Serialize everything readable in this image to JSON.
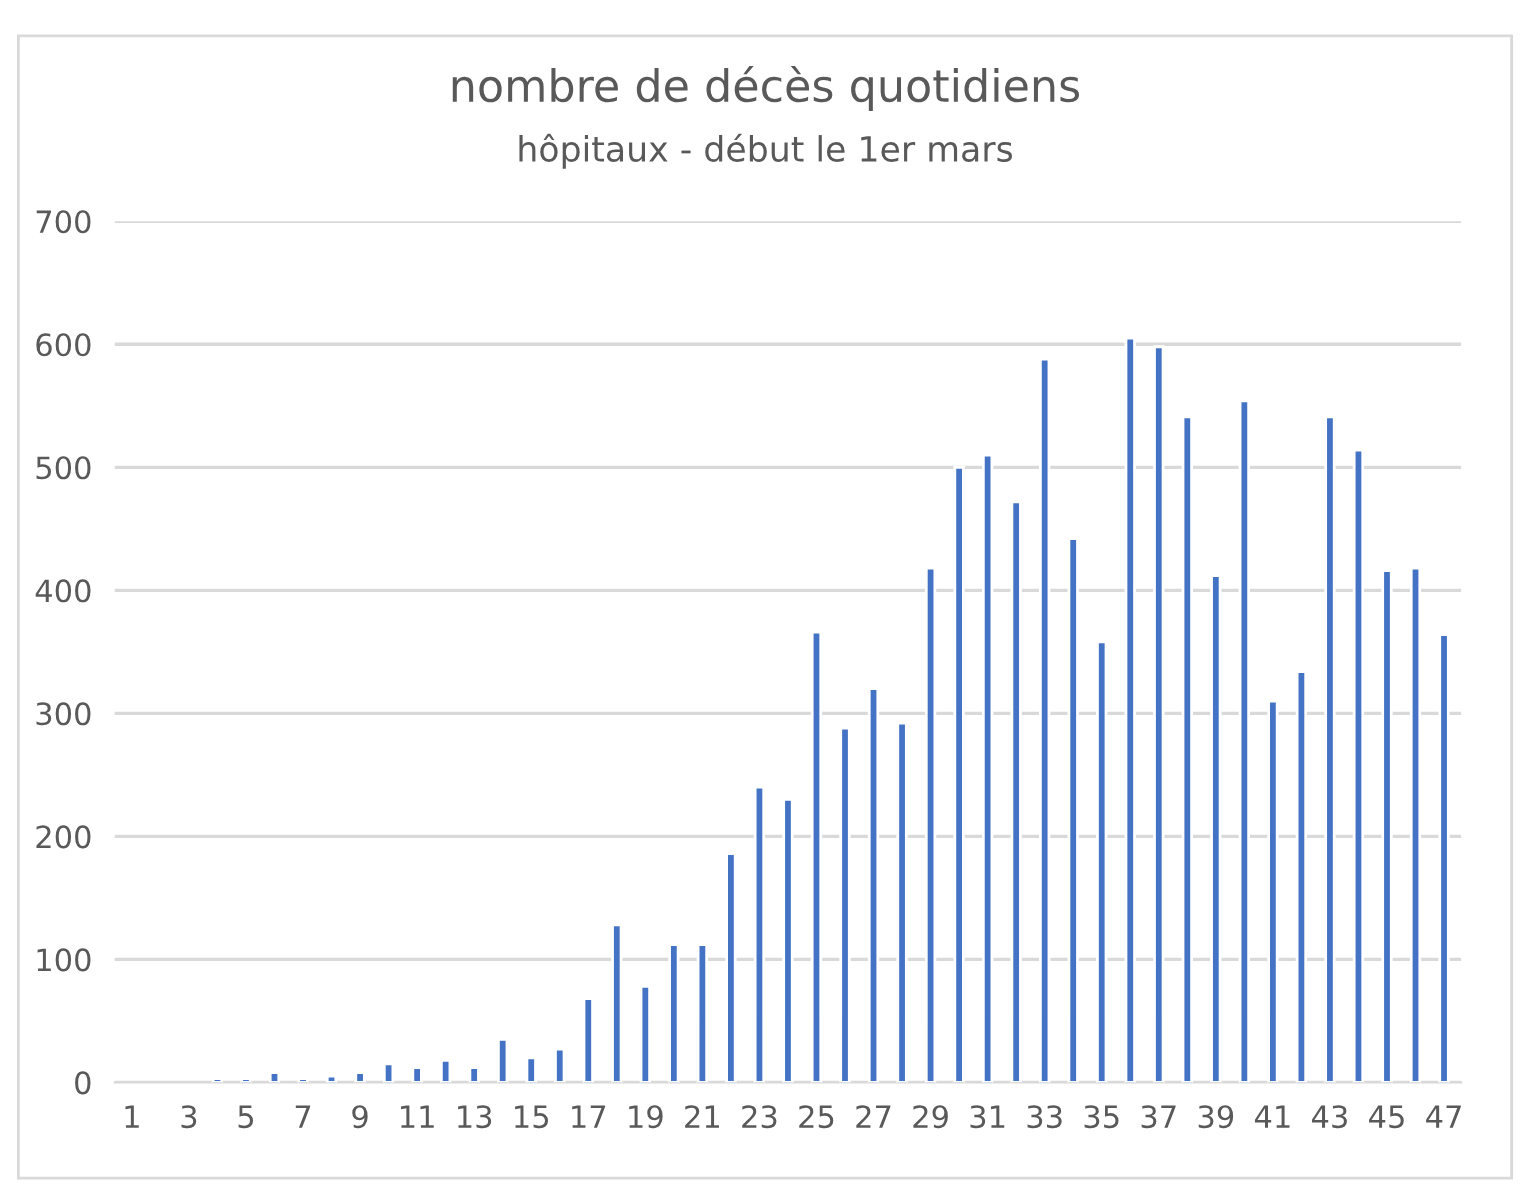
{
  "chart_data": {
    "type": "bar",
    "title": "nombre de décès quotidiens",
    "subtitle": "hôpitaux - début le 1er mars",
    "categories": [
      "1",
      null,
      "3",
      null,
      "5",
      null,
      "7",
      null,
      "9",
      null,
      "11",
      null,
      "13",
      null,
      "15",
      null,
      "17",
      null,
      "19",
      null,
      "21",
      null,
      "23",
      null,
      "25",
      null,
      "27",
      null,
      "29",
      null,
      "31",
      null,
      "33",
      null,
      "35",
      null,
      "37",
      null,
      "39",
      null,
      "41",
      null,
      "43",
      null,
      "45",
      null,
      "47"
    ],
    "values": [
      null,
      null,
      null,
      3,
      3,
      8,
      3,
      5,
      8,
      15,
      12,
      18,
      12,
      35,
      20,
      27,
      68,
      128,
      78,
      112,
      112,
      186,
      240,
      230,
      366,
      288,
      320,
      292,
      418,
      500,
      510,
      472,
      588,
      442,
      358,
      605,
      598,
      541,
      412,
      554,
      310,
      334,
      541,
      514,
      416,
      418,
      364
    ],
    "color": "#4472c4",
    "ylim": [
      0,
      700
    ],
    "yticks": [
      0,
      100,
      200,
      300,
      400,
      500,
      600,
      700
    ],
    "grid": "y"
  }
}
